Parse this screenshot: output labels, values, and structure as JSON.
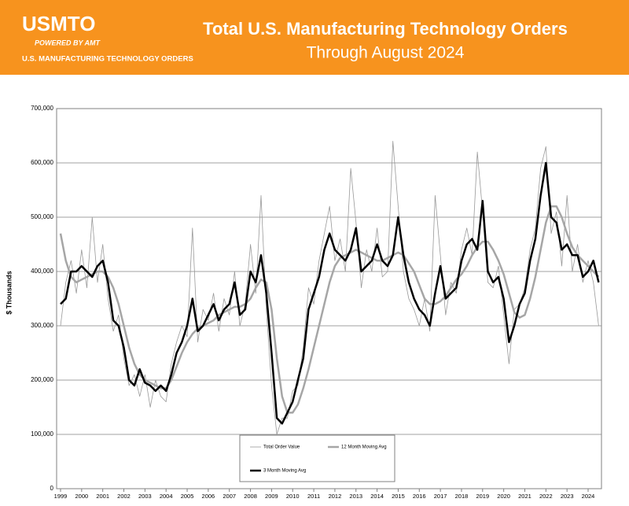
{
  "header": {
    "logo": "USMTO",
    "powered": "POWERED BY AMT",
    "tagline": "U.S. MANUFACTURING TECHNOLOGY ORDERS"
  },
  "chart_data": {
    "type": "line",
    "title": "Total U.S. Manufacturing Technology Orders",
    "subtitle": "Through August 2024",
    "y_label": "$ Thousands",
    "categories": [
      "1999",
      null,
      null,
      null,
      "2000",
      null,
      null,
      null,
      "2001",
      null,
      null,
      null,
      "2002",
      null,
      null,
      null,
      "2003",
      null,
      null,
      null,
      "2004",
      null,
      null,
      null,
      "2005",
      null,
      null,
      null,
      "2006",
      null,
      null,
      null,
      "2007",
      null,
      null,
      null,
      "2008",
      null,
      null,
      null,
      "2009",
      null,
      null,
      null,
      "2010",
      null,
      null,
      null,
      "2011",
      null,
      null,
      null,
      "2012",
      null,
      null,
      null,
      "2013",
      null,
      null,
      null,
      "2014",
      null,
      null,
      null,
      "2015",
      null,
      null,
      null,
      "2016",
      null,
      null,
      null,
      "2017",
      null,
      null,
      null,
      "2018",
      null,
      null,
      null,
      "2019",
      null,
      null,
      null,
      "2020",
      null,
      null,
      null,
      "2021",
      null,
      null,
      null,
      "2022",
      null,
      null,
      null,
      "2023",
      null,
      null,
      null,
      "2024",
      null,
      null
    ],
    "series": [
      {
        "name": "Total Order Value",
        "color": "#999999",
        "width": 0.8,
        "values": [
          300000,
          380000,
          420000,
          360000,
          440000,
          370000,
          500000,
          380000,
          450000,
          350000,
          290000,
          320000,
          240000,
          190000,
          210000,
          170000,
          210000,
          150000,
          200000,
          170000,
          160000,
          230000,
          270000,
          300000,
          280000,
          480000,
          270000,
          330000,
          310000,
          360000,
          290000,
          350000,
          320000,
          400000,
          300000,
          340000,
          450000,
          360000,
          540000,
          330000,
          190000,
          100000,
          130000,
          130000,
          180000,
          190000,
          260000,
          370000,
          340000,
          420000,
          470000,
          520000,
          420000,
          460000,
          400000,
          590000,
          490000,
          370000,
          440000,
          400000,
          480000,
          390000,
          400000,
          640000,
          520000,
          400000,
          350000,
          330000,
          300000,
          350000,
          290000,
          540000,
          430000,
          320000,
          380000,
          360000,
          440000,
          480000,
          430000,
          620000,
          510000,
          380000,
          370000,
          410000,
          320000,
          230000,
          330000,
          340000,
          370000,
          440000,
          480000,
          590000,
          630000,
          470000,
          510000,
          410000,
          540000,
          400000,
          450000,
          380000,
          420000,
          380000,
          300000
        ]
      },
      {
        "name": "12 Month Moving Avg",
        "color": "#a6a6a6",
        "width": 2.5,
        "values": [
          470000,
          420000,
          390000,
          380000,
          385000,
          390000,
          395000,
          400000,
          400000,
          390000,
          370000,
          340000,
          300000,
          260000,
          230000,
          210000,
          200000,
          195000,
          190000,
          185000,
          185000,
          200000,
          225000,
          250000,
          270000,
          285000,
          295000,
          300000,
          305000,
          310000,
          320000,
          325000,
          330000,
          335000,
          335000,
          340000,
          350000,
          370000,
          385000,
          380000,
          330000,
          240000,
          170000,
          140000,
          140000,
          155000,
          185000,
          220000,
          260000,
          300000,
          340000,
          380000,
          410000,
          425000,
          430000,
          435000,
          440000,
          435000,
          430000,
          425000,
          420000,
          420000,
          425000,
          430000,
          435000,
          430000,
          415000,
          400000,
          375000,
          350000,
          340000,
          340000,
          345000,
          355000,
          370000,
          385000,
          395000,
          410000,
          430000,
          445000,
          455000,
          455000,
          440000,
          420000,
          395000,
          360000,
          325000,
          315000,
          320000,
          350000,
          390000,
          440000,
          490000,
          520000,
          520000,
          500000,
          470000,
          445000,
          430000,
          420000,
          410000,
          400000,
          390000
        ]
      },
      {
        "name": "3 Month Moving Avg",
        "color": "#000000",
        "width": 2.5,
        "values": [
          340000,
          350000,
          400000,
          400000,
          410000,
          400000,
          390000,
          410000,
          420000,
          380000,
          310000,
          300000,
          260000,
          200000,
          190000,
          220000,
          195000,
          190000,
          180000,
          190000,
          180000,
          210000,
          250000,
          270000,
          300000,
          350000,
          290000,
          300000,
          320000,
          340000,
          310000,
          330000,
          340000,
          380000,
          320000,
          330000,
          400000,
          380000,
          430000,
          360000,
          250000,
          130000,
          120000,
          140000,
          160000,
          200000,
          240000,
          330000,
          360000,
          390000,
          440000,
          470000,
          440000,
          430000,
          420000,
          440000,
          480000,
          400000,
          410000,
          420000,
          450000,
          420000,
          410000,
          430000,
          500000,
          430000,
          380000,
          350000,
          330000,
          320000,
          300000,
          360000,
          410000,
          350000,
          360000,
          370000,
          420000,
          450000,
          460000,
          440000,
          530000,
          400000,
          380000,
          390000,
          350000,
          270000,
          300000,
          340000,
          360000,
          420000,
          460000,
          540000,
          600000,
          500000,
          490000,
          440000,
          450000,
          430000,
          430000,
          390000,
          400000,
          420000,
          380000
        ]
      }
    ],
    "ylim": [
      0,
      700000
    ],
    "yticks": [
      {
        "value": 0,
        "label": "0"
      },
      {
        "value": 100000,
        "label": "100,000"
      },
      {
        "value": 200000,
        "label": "200,000"
      },
      {
        "value": 300000,
        "label": "300,000"
      },
      {
        "value": 400000,
        "label": "400,000"
      },
      {
        "value": 500000,
        "label": "500,000"
      },
      {
        "value": 600000,
        "label": "600,000"
      },
      {
        "value": 700000,
        "label": "700,000"
      }
    ],
    "grid": true
  }
}
